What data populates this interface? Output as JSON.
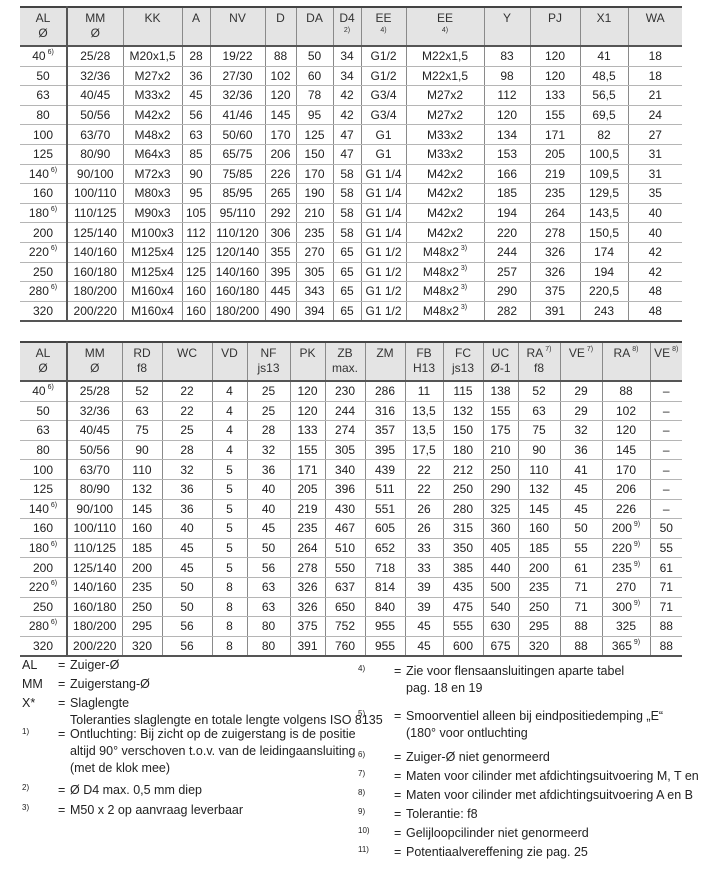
{
  "table1": {
    "widths": [
      47,
      56,
      59,
      28,
      55,
      31,
      37,
      28,
      45,
      78,
      46,
      50,
      48,
      54
    ],
    "headers": [
      {
        "l1": "AL",
        "l2": "Ø"
      },
      {
        "l1": "MM",
        "l2": "Ø"
      },
      {
        "l1": "KK"
      },
      {
        "l1": "A"
      },
      {
        "l1": "NV"
      },
      {
        "l1": "D"
      },
      {
        "l1": "DA"
      },
      {
        "l1": "D4",
        "note": "2)"
      },
      {
        "l1": "EE",
        "note": "4)"
      },
      {
        "l1": "EE",
        "note": "4)"
      },
      {
        "l1": "Y"
      },
      {
        "l1": "PJ"
      },
      {
        "l1": "X1"
      },
      {
        "l1": "WA"
      }
    ],
    "rows": [
      [
        [
          "40",
          "6)"
        ],
        "25/28",
        "M20x1,5",
        "28",
        "19/22",
        "88",
        "50",
        "34",
        "G1/2",
        "M22x1,5",
        "83",
        "120",
        "41",
        "18"
      ],
      [
        "50",
        "32/36",
        "M27x2",
        "36",
        "27/30",
        "102",
        "60",
        "34",
        "G1/2",
        "M22x1,5",
        "98",
        "120",
        "48,5",
        "18"
      ],
      [
        "63",
        "40/45",
        "M33x2",
        "45",
        "32/36",
        "120",
        "78",
        "42",
        "G3/4",
        "M27x2",
        "112",
        "133",
        "56,5",
        "21"
      ],
      [
        "80",
        "50/56",
        "M42x2",
        "56",
        "41/46",
        "145",
        "95",
        "42",
        "G3/4",
        "M27x2",
        "120",
        "155",
        "69,5",
        "24"
      ],
      [
        "100",
        "63/70",
        "M48x2",
        "63",
        "50/60",
        "170",
        "125",
        "47",
        "G1",
        "M33x2",
        "134",
        "171",
        "82",
        "27"
      ],
      [
        "125",
        "80/90",
        "M64x3",
        "85",
        "65/75",
        "206",
        "150",
        "47",
        "G1",
        "M33x2",
        "153",
        "205",
        "100,5",
        "31"
      ],
      [
        [
          "140",
          "6)"
        ],
        "90/100",
        "M72x3",
        "90",
        "75/85",
        "226",
        "170",
        "58",
        "G1 1/4",
        "M42x2",
        "166",
        "219",
        "109,5",
        "31"
      ],
      [
        "160",
        "100/110",
        "M80x3",
        "95",
        "85/95",
        "265",
        "190",
        "58",
        "G1 1/4",
        "M42x2",
        "185",
        "235",
        "129,5",
        "35"
      ],
      [
        [
          "180",
          "6)"
        ],
        "110/125",
        "M90x3",
        "105",
        "95/110",
        "292",
        "210",
        "58",
        "G1 1/4",
        "M42x2",
        "194",
        "264",
        "143,5",
        "40"
      ],
      [
        "200",
        "125/140",
        "M100x3",
        "112",
        "110/120",
        "306",
        "235",
        "58",
        "G1 1/4",
        "M42x2",
        "220",
        "278",
        "150,5",
        "40"
      ],
      [
        [
          "220",
          "6)"
        ],
        "140/160",
        "M125x4",
        "125",
        "120/140",
        "355",
        "270",
        "65",
        "G1 1/2",
        [
          "M48x2",
          "3)"
        ],
        "244",
        "326",
        "174",
        "42"
      ],
      [
        "250",
        "160/180",
        "M125x4",
        "125",
        "140/160",
        "395",
        "305",
        "65",
        "G1 1/2",
        [
          "M48x2",
          "3)"
        ],
        "257",
        "326",
        "194",
        "42"
      ],
      [
        [
          "280",
          "6)"
        ],
        "180/200",
        "M160x4",
        "160",
        "160/180",
        "445",
        "343",
        "65",
        "G1 1/2",
        [
          "M48x2",
          "3)"
        ],
        "290",
        "375",
        "220,5",
        "48"
      ],
      [
        "320",
        "200/220",
        "M160x4",
        "160",
        "180/200",
        "490",
        "394",
        "65",
        "G1 1/2",
        [
          "M48x2",
          "3)"
        ],
        "282",
        "391",
        "243",
        "48"
      ]
    ]
  },
  "table2": {
    "widths": [
      47,
      55,
      40,
      50,
      35,
      43,
      35,
      40,
      40,
      38,
      40,
      35,
      42,
      42,
      48,
      32
    ],
    "headers": [
      {
        "l1": "AL",
        "l2": "Ø"
      },
      {
        "l1": "MM",
        "l2": "Ø"
      },
      {
        "l1": "RD",
        "l2": "f8"
      },
      {
        "l1": "WC"
      },
      {
        "l1": "VD"
      },
      {
        "l1": "NF",
        "l2": "js13"
      },
      {
        "l1": "PK"
      },
      {
        "l1": "ZB",
        "l2": "max."
      },
      {
        "l1": "ZM"
      },
      {
        "l1": "FB",
        "l2": "H13"
      },
      {
        "l1": "FC",
        "l2": "js13"
      },
      {
        "l1": "UC",
        "l2": "Ø-1"
      },
      {
        "l1": "RA",
        "sup": "7)",
        "l2": "f8"
      },
      {
        "l1": "VE",
        "sup": "7)"
      },
      {
        "l1": "RA",
        "sup": "8)"
      },
      {
        "l1": "VE",
        "sup": "8)"
      }
    ],
    "rows": [
      [
        [
          "40",
          "6)"
        ],
        "25/28",
        "52",
        "22",
        "4",
        "25",
        "120",
        "230",
        "286",
        "11",
        "115",
        "138",
        "52",
        "29",
        "88",
        "–"
      ],
      [
        "50",
        "32/36",
        "63",
        "22",
        "4",
        "25",
        "120",
        "244",
        "316",
        "13,5",
        "132",
        "155",
        "63",
        "29",
        "102",
        "–"
      ],
      [
        "63",
        "40/45",
        "75",
        "25",
        "4",
        "28",
        "133",
        "274",
        "357",
        "13,5",
        "150",
        "175",
        "75",
        "32",
        "120",
        "–"
      ],
      [
        "80",
        "50/56",
        "90",
        "28",
        "4",
        "32",
        "155",
        "305",
        "395",
        "17,5",
        "180",
        "210",
        "90",
        "36",
        "145",
        "–"
      ],
      [
        "100",
        "63/70",
        "110",
        "32",
        "5",
        "36",
        "171",
        "340",
        "439",
        "22",
        "212",
        "250",
        "110",
        "41",
        "170",
        "–"
      ],
      [
        "125",
        "80/90",
        "132",
        "36",
        "5",
        "40",
        "205",
        "396",
        "511",
        "22",
        "250",
        "290",
        "132",
        "45",
        "206",
        "–"
      ],
      [
        [
          "140",
          "6)"
        ],
        "90/100",
        "145",
        "36",
        "5",
        "40",
        "219",
        "430",
        "551",
        "26",
        "280",
        "325",
        "145",
        "45",
        "226",
        "–"
      ],
      [
        "160",
        "100/110",
        "160",
        "40",
        "5",
        "45",
        "235",
        "467",
        "605",
        "26",
        "315",
        "360",
        "160",
        "50",
        [
          "200",
          "9)"
        ],
        "50"
      ],
      [
        [
          "180",
          "6)"
        ],
        "110/125",
        "185",
        "45",
        "5",
        "50",
        "264",
        "510",
        "652",
        "33",
        "350",
        "405",
        "185",
        "55",
        [
          "220",
          "9)"
        ],
        "55"
      ],
      [
        "200",
        "125/140",
        "200",
        "45",
        "5",
        "56",
        "278",
        "550",
        "718",
        "33",
        "385",
        "440",
        "200",
        "61",
        [
          "235",
          "9)"
        ],
        "61"
      ],
      [
        [
          "220",
          "6)"
        ],
        "140/160",
        "235",
        "50",
        "8",
        "63",
        "326",
        "637",
        "814",
        "39",
        "435",
        "500",
        "235",
        "71",
        "270",
        "71"
      ],
      [
        "250",
        "160/180",
        "250",
        "50",
        "8",
        "63",
        "326",
        "650",
        "840",
        "39",
        "475",
        "540",
        "250",
        "71",
        [
          "300",
          "9)"
        ],
        "71"
      ],
      [
        [
          "280",
          "6)"
        ],
        "180/200",
        "295",
        "56",
        "8",
        "80",
        "375",
        "752",
        "955",
        "45",
        "555",
        "630",
        "295",
        "88",
        "325",
        "88"
      ],
      [
        "320",
        "200/220",
        "320",
        "56",
        "8",
        "80",
        "391",
        "760",
        "955",
        "45",
        "600",
        "675",
        "320",
        "88",
        [
          "365",
          "9)"
        ],
        "88"
      ]
    ]
  },
  "footnotes_left": [
    {
      "key": "AL",
      "lines": [
        "Zuiger-Ø"
      ]
    },
    {
      "key": "MM",
      "lines": [
        "Zuigerstang-Ø"
      ]
    },
    {
      "key": "X*",
      "lines": [
        "Slaglengte",
        "Toleranties slaglengte en totale lengte volgens ISO 8135"
      ]
    },
    {
      "key": "1)",
      "small": true,
      "lines": [
        "Ontluchting: Bij zicht op de zuigerstang is de positie",
        "altijd 90° verschoven t.o.v. van de leidingaansluiting",
        "(met de klok mee)"
      ]
    },
    {
      "key": "2)",
      "small": true,
      "lines": [
        "Ø D4 max. 0,5 mm diep"
      ]
    },
    {
      "key": "3)",
      "small": true,
      "lines": [
        "M50 x 2 op aanvraag leverbaar"
      ]
    }
  ],
  "footnotes_right": [
    {
      "key": "4)",
      "lines": [
        "Zie voor flensaansluitingen aparte tabel",
        "pag. 18 en 19"
      ]
    },
    {
      "key": "5)",
      "lines": [
        "Smoorventiel alleen bij eindpositiedemping „E“",
        "(180° voor ontluchting"
      ]
    },
    {
      "key": "6)",
      "lines": [
        "Zuiger-Ø niet genormeerd"
      ]
    },
    {
      "key": "7)",
      "lines": [
        "Maten voor cilinder met afdichtingsuitvoering M, T en S"
      ]
    },
    {
      "key": "8)",
      "lines": [
        "Maten voor cilinder met afdichtingsuitvoering A en B"
      ]
    },
    {
      "key": "9)",
      "lines": [
        "Tolerantie: f8"
      ]
    },
    {
      "key": "10)",
      "lines": [
        "Gelijloopcilinder niet genormeerd"
      ]
    },
    {
      "key": "11)",
      "lines": [
        "Potentiaalvereffening zie pag. 25"
      ]
    }
  ],
  "equals_sign": "="
}
